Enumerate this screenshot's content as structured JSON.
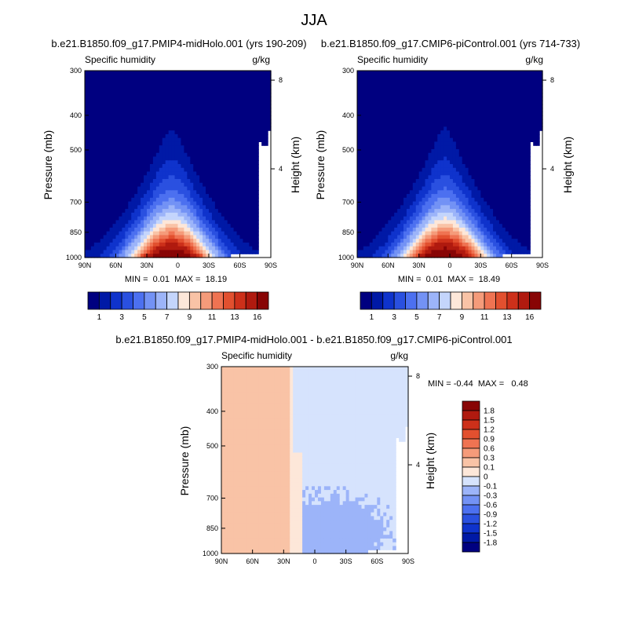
{
  "figure": {
    "title": "JJA",
    "background": "#ffffff"
  },
  "chart_data": [
    {
      "type": "heatmap",
      "title": "b.e21.B1850.f09_g17.PMIP4-midHolo.001 (yrs 190-209)",
      "left_label": "Specific humidity",
      "right_label": "g/kg",
      "xlabel": "",
      "ylabel": "Pressure (mb)",
      "ylabel_right": "Height (km)",
      "x_ticks": [
        "90N",
        "60N",
        "30N",
        "0",
        "30S",
        "60S",
        "90S"
      ],
      "x_tick_lat": [
        90,
        60,
        30,
        0,
        -30,
        -60,
        -90
      ],
      "y_ticks": [
        "300",
        "400",
        "500",
        "700",
        "850",
        "1000"
      ],
      "y_tick_p": [
        300,
        400,
        500,
        700,
        850,
        1000
      ],
      "height_ticks": [
        "8",
        "4"
      ],
      "height_tick_km": [
        8,
        4
      ],
      "ylim_mb": [
        1000,
        300
      ],
      "xlim_lat": [
        90,
        -90
      ],
      "stats": "MIN =  0.01  MAX =  18.19",
      "min": 0.01,
      "max": 18.19,
      "peak_lat": 6,
      "colorbar_labels": [
        "1",
        "3",
        "5",
        "7",
        "9",
        "11",
        "13",
        "16"
      ],
      "levels": [
        0.5,
        1,
        2,
        3,
        4,
        5,
        6,
        7,
        8,
        9,
        10,
        11,
        12,
        13,
        14,
        16,
        18
      ],
      "colors": [
        "#000080",
        "#0019a6",
        "#0f33cc",
        "#2a50e0",
        "#4c70f0",
        "#7392f5",
        "#9cb4f9",
        "#c4d5fc",
        "#fde7d9",
        "#f9c3a6",
        "#f59b7a",
        "#ef7352",
        "#e2502f",
        "#cd301a",
        "#b01a0f",
        "#880505"
      ]
    },
    {
      "type": "heatmap",
      "title": "b.e21.B1850.f09_g17.CMIP6-piControl.001 (yrs 714-733)",
      "left_label": "Specific humidity",
      "right_label": "g/kg",
      "xlabel": "",
      "ylabel": "Pressure (mb)",
      "ylabel_right": "Height (km)",
      "x_ticks": [
        "90N",
        "60N",
        "30N",
        "0",
        "30S",
        "60S",
        "90S"
      ],
      "x_tick_lat": [
        90,
        60,
        30,
        0,
        -30,
        -60,
        -90
      ],
      "y_ticks": [
        "300",
        "400",
        "500",
        "700",
        "850",
        "1000"
      ],
      "y_tick_p": [
        300,
        400,
        500,
        700,
        850,
        1000
      ],
      "height_ticks": [
        "8",
        "4"
      ],
      "height_tick_km": [
        8,
        4
      ],
      "ylim_mb": [
        1000,
        300
      ],
      "xlim_lat": [
        90,
        -90
      ],
      "stats": "MIN =  0.01  MAX =  18.49",
      "min": 0.01,
      "max": 18.49,
      "peak_lat": 5,
      "colorbar_labels": [
        "1",
        "3",
        "5",
        "7",
        "9",
        "11",
        "13",
        "16"
      ],
      "levels": [
        0.5,
        1,
        2,
        3,
        4,
        5,
        6,
        7,
        8,
        9,
        10,
        11,
        12,
        13,
        14,
        16,
        18
      ],
      "colors": [
        "#000080",
        "#0019a6",
        "#0f33cc",
        "#2a50e0",
        "#4c70f0",
        "#7392f5",
        "#9cb4f9",
        "#c4d5fc",
        "#fde7d9",
        "#f9c3a6",
        "#f59b7a",
        "#ef7352",
        "#e2502f",
        "#cd301a",
        "#b01a0f",
        "#880505"
      ]
    },
    {
      "type": "heatmap",
      "title": "b.e21.B1850.f09_g17.PMIP4-midHolo.001 - b.e21.B1850.f09_g17.CMIP6-piControl.001",
      "left_label": "Specific humidity",
      "right_label": "g/kg",
      "xlabel": "",
      "ylabel": "Pressure (mb)",
      "ylabel_right": "Height (km)",
      "x_ticks": [
        "90N",
        "60N",
        "30N",
        "0",
        "30S",
        "60S",
        "90S"
      ],
      "x_tick_lat": [
        90,
        60,
        30,
        0,
        -30,
        -60,
        -90
      ],
      "y_ticks": [
        "300",
        "400",
        "500",
        "700",
        "850",
        "1000"
      ],
      "y_tick_p": [
        300,
        400,
        500,
        700,
        850,
        1000
      ],
      "height_ticks": [
        "8",
        "4"
      ],
      "height_tick_km": [
        8,
        4
      ],
      "ylim_mb": [
        1000,
        300
      ],
      "xlim_lat": [
        90,
        -90
      ],
      "stats": "MIN = -0.44  MAX =   0.48",
      "min": -0.44,
      "max": 0.48,
      "colorbar_labels": [
        "1.8",
        "1.5",
        "1.2",
        "0.9",
        "0.6",
        "0.3",
        "0.1",
        "0",
        "-0.1",
        "-0.3",
        "-0.6",
        "-0.9",
        "-1.2",
        "-1.5",
        "-1.8"
      ],
      "levels": [
        -2.1,
        -1.8,
        -1.5,
        -1.2,
        -0.9,
        -0.6,
        -0.3,
        -0.1,
        0,
        0.1,
        0.3,
        0.6,
        0.9,
        1.2,
        1.5,
        1.8,
        2.1
      ],
      "colors": [
        "#000080",
        "#0019a6",
        "#0f33cc",
        "#2a50e0",
        "#4c70f0",
        "#7392f5",
        "#9cb4f9",
        "#d6e3fd",
        "#fde7d9",
        "#f9c3a6",
        "#f59b7a",
        "#ef7352",
        "#e2502f",
        "#cd301a",
        "#b01a0f",
        "#880505"
      ]
    }
  ]
}
